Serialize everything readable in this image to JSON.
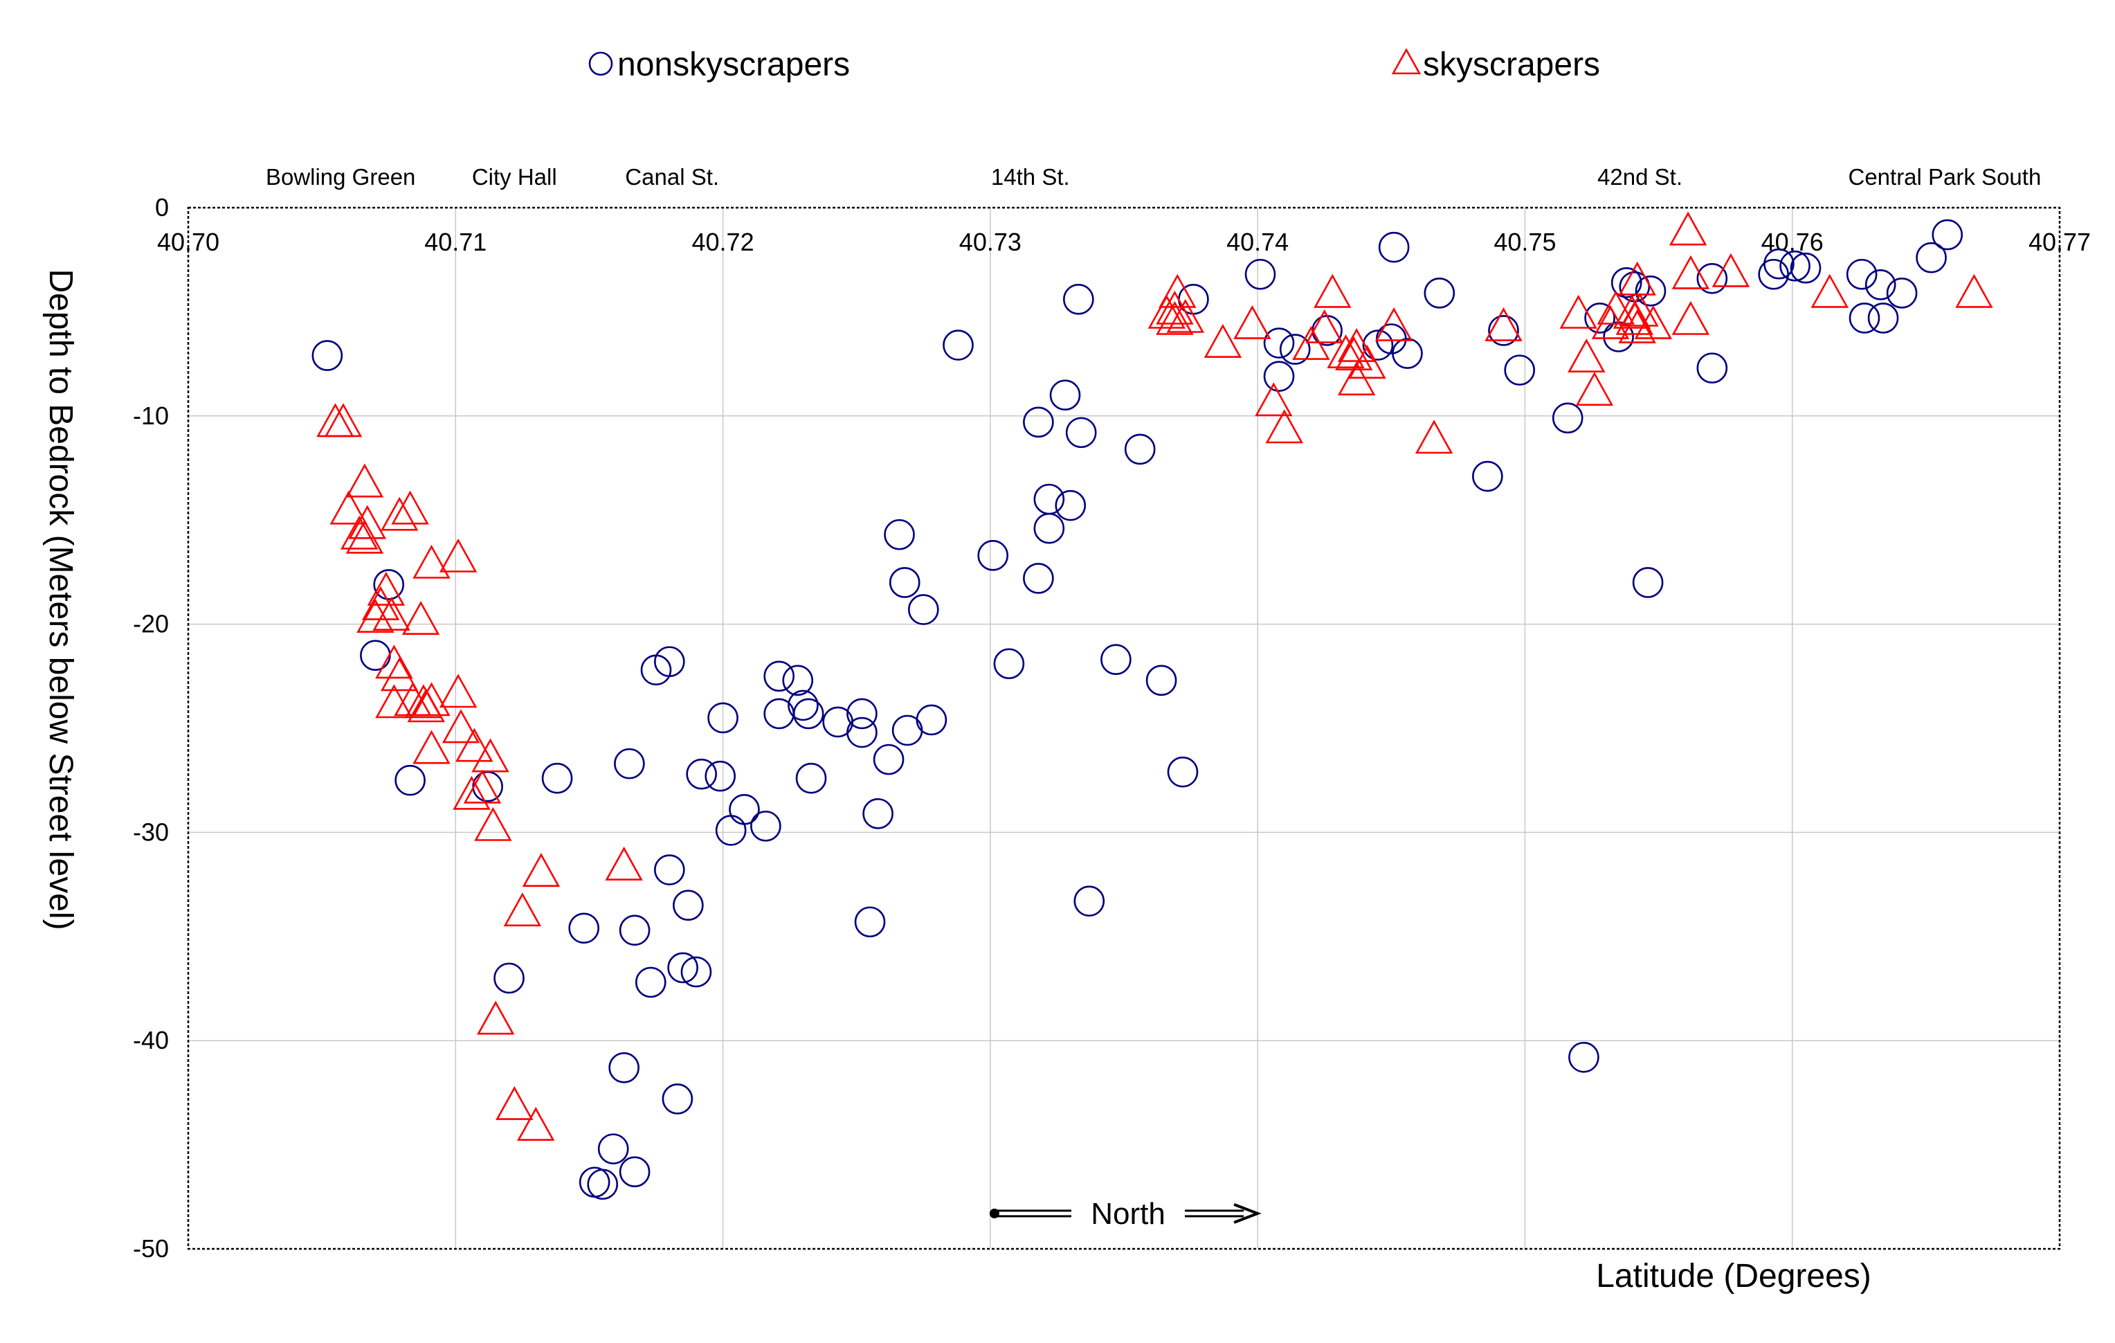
{
  "chart_data": {
    "type": "scatter",
    "xlabel": "Latitude (Degrees)",
    "ylabel": "Depth to Bedrock (Meters below Street level)",
    "xlim": [
      40.7,
      40.77
    ],
    "ylim": [
      -50,
      0
    ],
    "x_ticks": [
      "40.70",
      "40.71",
      "40.72",
      "40.73",
      "40.74",
      "40.75",
      "40.76",
      "40.77"
    ],
    "y_ticks": [
      "0",
      "-10",
      "-20",
      "-30",
      "-40",
      "-50"
    ],
    "x_axis_position": "top",
    "grid": true,
    "legend": {
      "placement": "top",
      "entries": [
        {
          "label": "nonskyscrapers",
          "marker": "circle",
          "color": "#000080"
        },
        {
          "label": "skyscrapers",
          "marker": "triangle",
          "color": "#ff0000"
        }
      ]
    },
    "annotations": {
      "landmarks": [
        {
          "text": "Bowling Green",
          "x": 40.7057
        },
        {
          "text": "City Hall",
          "x": 40.7122
        },
        {
          "text": "Canal St.",
          "x": 40.7181
        },
        {
          "text": "14th St.",
          "x": 40.7315
        },
        {
          "text": "42nd St.",
          "x": 40.7543
        },
        {
          "text": "Central Park South",
          "x": 40.7657
        }
      ],
      "arrow": {
        "text": "North",
        "x_start": 40.73,
        "x_end": 40.74,
        "y": -48.3
      }
    },
    "series": [
      {
        "name": "nonskyscrapers",
        "marker": "circle",
        "color": "#000080",
        "points": [
          [
            40.7052,
            -7.1
          ],
          [
            40.7075,
            -18.1
          ],
          [
            40.707,
            -21.5
          ],
          [
            40.7083,
            -27.5
          ],
          [
            40.7112,
            -27.8
          ],
          [
            40.712,
            -37.0
          ],
          [
            40.7138,
            -27.4
          ],
          [
            40.7148,
            -34.6
          ],
          [
            40.7165,
            -26.7
          ],
          [
            40.7167,
            -34.7
          ],
          [
            40.7173,
            -37.2
          ],
          [
            40.7163,
            -41.3
          ],
          [
            40.7159,
            -45.2
          ],
          [
            40.7152,
            -46.8
          ],
          [
            40.7155,
            -46.9
          ],
          [
            40.7167,
            -46.3
          ],
          [
            40.7175,
            -22.2
          ],
          [
            40.718,
            -21.8
          ],
          [
            40.718,
            -31.8
          ],
          [
            40.7187,
            -33.5
          ],
          [
            40.7185,
            -36.5
          ],
          [
            40.719,
            -36.7
          ],
          [
            40.7183,
            -42.8
          ],
          [
            40.7192,
            -27.2
          ],
          [
            40.72,
            -24.5
          ],
          [
            40.7199,
            -27.3
          ],
          [
            40.7203,
            -29.9
          ],
          [
            40.7208,
            -28.9
          ],
          [
            40.7216,
            -29.7
          ],
          [
            40.7221,
            -22.5
          ],
          [
            40.7221,
            -24.3
          ],
          [
            40.7228,
            -22.7
          ],
          [
            40.723,
            -23.9
          ],
          [
            40.7232,
            -24.3
          ],
          [
            40.7233,
            -27.4
          ],
          [
            40.7243,
            -24.7
          ],
          [
            40.7252,
            -24.3
          ],
          [
            40.7252,
            -25.2
          ],
          [
            40.7255,
            -34.3
          ],
          [
            40.7258,
            -29.1
          ],
          [
            40.7262,
            -26.5
          ],
          [
            40.7266,
            -15.7
          ],
          [
            40.7268,
            -18.0
          ],
          [
            40.7269,
            -25.1
          ],
          [
            40.7275,
            -19.3
          ],
          [
            40.7278,
            -24.6
          ],
          [
            40.7288,
            -6.6
          ],
          [
            40.7301,
            -16.7
          ],
          [
            40.7307,
            -21.9
          ],
          [
            40.7318,
            -17.8
          ],
          [
            40.7318,
            -10.3
          ],
          [
            40.7322,
            -14.0
          ],
          [
            40.7322,
            -15.4
          ],
          [
            40.7328,
            -9.0
          ],
          [
            40.733,
            -14.3
          ],
          [
            40.7333,
            -4.4
          ],
          [
            40.7334,
            -10.8
          ],
          [
            40.7337,
            -33.3
          ],
          [
            40.7347,
            -21.7
          ],
          [
            40.7356,
            -11.6
          ],
          [
            40.7364,
            -22.7
          ],
          [
            40.7372,
            -27.1
          ],
          [
            40.7376,
            -4.4
          ],
          [
            40.7401,
            -3.2
          ],
          [
            40.7408,
            -6.5
          ],
          [
            40.7408,
            -8.1
          ],
          [
            40.7414,
            -6.8
          ],
          [
            40.7426,
            -5.9
          ],
          [
            40.7445,
            -6.6
          ],
          [
            40.745,
            -6.3
          ],
          [
            40.7451,
            -1.9
          ],
          [
            40.7456,
            -7.0
          ],
          [
            40.7468,
            -4.1
          ],
          [
            40.7486,
            -12.9
          ],
          [
            40.7492,
            -5.9
          ],
          [
            40.7498,
            -7.8
          ],
          [
            40.7516,
            -10.1
          ],
          [
            40.7522,
            -40.8
          ],
          [
            40.7528,
            -5.3
          ],
          [
            40.7535,
            -6.2
          ],
          [
            40.7538,
            -3.6
          ],
          [
            40.7541,
            -3.8
          ],
          [
            40.7547,
            -4.0
          ],
          [
            40.7546,
            -18.0
          ],
          [
            40.757,
            -3.4
          ],
          [
            40.757,
            -7.7
          ],
          [
            40.7593,
            -3.2
          ],
          [
            40.7595,
            -2.7
          ],
          [
            40.7601,
            -2.8
          ],
          [
            40.7605,
            -2.9
          ],
          [
            40.7626,
            -3.2
          ],
          [
            40.7627,
            -5.3
          ],
          [
            40.7633,
            -3.7
          ],
          [
            40.7634,
            -5.3
          ],
          [
            40.7641,
            -4.1
          ],
          [
            40.7652,
            -2.4
          ],
          [
            40.7658,
            -1.3
          ]
        ]
      },
      {
        "name": "skyscrapers",
        "marker": "triangle",
        "color": "#ff0000",
        "points": [
          [
            40.7055,
            -10.4
          ],
          [
            40.7058,
            -10.4
          ],
          [
            40.706,
            -14.6
          ],
          [
            40.7066,
            -13.3
          ],
          [
            40.7067,
            -15.3
          ],
          [
            40.7064,
            -15.8
          ],
          [
            40.7066,
            -16.0
          ],
          [
            40.7074,
            -18.5
          ],
          [
            40.7072,
            -19.2
          ],
          [
            40.707,
            -19.8
          ],
          [
            40.7076,
            -19.7
          ],
          [
            40.7079,
            -14.9
          ],
          [
            40.7083,
            -14.6
          ],
          [
            40.7077,
            -22.0
          ],
          [
            40.7077,
            -23.9
          ],
          [
            40.7079,
            -22.6
          ],
          [
            40.7084,
            -23.8
          ],
          [
            40.7087,
            -19.9
          ],
          [
            40.7088,
            -23.9
          ],
          [
            40.7089,
            -24.1
          ],
          [
            40.7091,
            -23.8
          ],
          [
            40.7091,
            -26.1
          ],
          [
            40.7091,
            -17.2
          ],
          [
            40.7101,
            -16.9
          ],
          [
            40.7101,
            -23.4
          ],
          [
            40.7102,
            -25.1
          ],
          [
            40.7107,
            -26.0
          ],
          [
            40.7113,
            -26.5
          ],
          [
            40.7106,
            -28.3
          ],
          [
            40.711,
            -28.0
          ],
          [
            40.7114,
            -29.8
          ],
          [
            40.7125,
            -33.9
          ],
          [
            40.7132,
            -32.0
          ],
          [
            40.7115,
            -39.1
          ],
          [
            40.7122,
            -43.2
          ],
          [
            40.713,
            -44.2
          ],
          [
            40.7163,
            -31.7
          ],
          [
            40.7366,
            -5.2
          ],
          [
            40.7369,
            -5.0
          ],
          [
            40.737,
            -4.2
          ],
          [
            40.7369,
            -5.5
          ],
          [
            40.7373,
            -5.4
          ],
          [
            40.7387,
            -6.6
          ],
          [
            40.7398,
            -5.7
          ],
          [
            40.7406,
            -9.4
          ],
          [
            40.741,
            -10.7
          ],
          [
            40.742,
            -6.7
          ],
          [
            40.7428,
            -4.2
          ],
          [
            40.7425,
            -5.9
          ],
          [
            40.7433,
            -7.1
          ],
          [
            40.7437,
            -8.4
          ],
          [
            40.7437,
            -6.8
          ],
          [
            40.7441,
            -7.6
          ],
          [
            40.7436,
            -7.2
          ],
          [
            40.7451,
            -5.8
          ],
          [
            40.7466,
            -11.2
          ],
          [
            40.7492,
            -5.8
          ],
          [
            40.752,
            -5.2
          ],
          [
            40.7523,
            -7.3
          ],
          [
            40.7526,
            -8.9
          ],
          [
            40.7532,
            -5.7
          ],
          [
            40.7534,
            -5.0
          ],
          [
            40.7541,
            -5.5
          ],
          [
            40.7542,
            -5.9
          ],
          [
            40.754,
            -5.2
          ],
          [
            40.7543,
            -5.1
          ],
          [
            40.7542,
            -3.6
          ],
          [
            40.7548,
            -5.7
          ],
          [
            40.7561,
            -1.2
          ],
          [
            40.7562,
            -3.3
          ],
          [
            40.7562,
            -5.5
          ],
          [
            40.7577,
            -3.2
          ],
          [
            40.7614,
            -4.2
          ],
          [
            40.7668,
            -4.2
          ]
        ]
      }
    ]
  }
}
